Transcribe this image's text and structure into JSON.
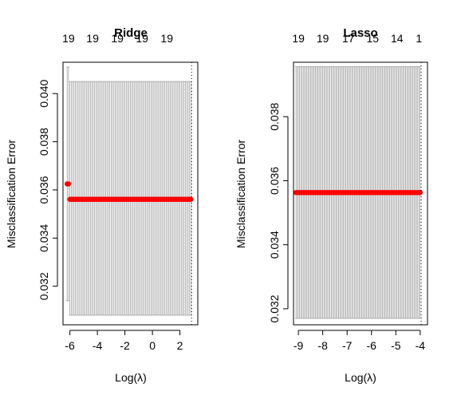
{
  "chart_data": [
    {
      "type": "scatter",
      "title": "Ridge",
      "xlabel": "Log(λ)",
      "ylabel": "Misclassification Error",
      "xlim": [
        -6.5,
        3.3
      ],
      "ylim": [
        0.0304,
        0.0413
      ],
      "x_ticks": [
        -6,
        -4,
        -2,
        0,
        2
      ],
      "x_tick_labels": [
        "-6",
        "-4",
        "-2",
        "0",
        "2"
      ],
      "y_ticks": [
        0.032,
        0.034,
        0.036,
        0.038,
        0.04
      ],
      "y_tick_labels": [
        "0.032",
        "0.034",
        "0.036",
        "0.038",
        "0.040"
      ],
      "top_axis": {
        "ticks": [
          -6.1,
          -4.35,
          -2.55,
          -0.75,
          1.05
        ],
        "labels": [
          "19",
          "19",
          "19",
          "19",
          "19"
        ]
      },
      "vline": 2.85,
      "series": [
        {
          "color": "#ff0000",
          "points": [
            {
              "x": -6.2,
              "y": 0.03625,
              "lo": 0.0314,
              "hi": 0.0411
            },
            {
              "x": -6.1,
              "y": 0.03625,
              "lo": 0.0314,
              "hi": 0.0411
            },
            {
              "x_start": -6.0,
              "x_end": 2.85,
              "step": 0.1,
              "y": 0.03561,
              "lo": 0.0308,
              "hi": 0.0405
            }
          ]
        }
      ]
    },
    {
      "type": "scatter",
      "title": "Lasso",
      "xlabel": "Log(λ)",
      "ylabel": "Misclassification Error",
      "xlim": [
        -9.2,
        -3.7
      ],
      "ylim": [
        0.0315,
        0.0397
      ],
      "x_ticks": [
        -9,
        -8,
        -7,
        -6,
        -5,
        -4
      ],
      "x_tick_labels": [
        "-9",
        "-8",
        "-7",
        "-6",
        "-5",
        "-4"
      ],
      "y_ticks": [
        0.032,
        0.034,
        0.036,
        0.038
      ],
      "y_tick_labels": [
        "0.032",
        "0.034",
        "0.036",
        "0.038"
      ],
      "top_axis": {
        "ticks": [
          -9.0,
          -8.0,
          -6.95,
          -5.95,
          -4.95,
          -4.05
        ],
        "labels": [
          "19",
          "19",
          "17",
          "15",
          "14",
          "1"
        ]
      },
      "vline": -3.96,
      "series": [
        {
          "color": "#ff0000",
          "points": [
            {
              "x_start": -9.1,
              "x_end": -3.96,
              "step": 0.05,
              "y": 0.03563,
              "lo": 0.0317,
              "hi": 0.03956
            }
          ]
        }
      ]
    }
  ]
}
